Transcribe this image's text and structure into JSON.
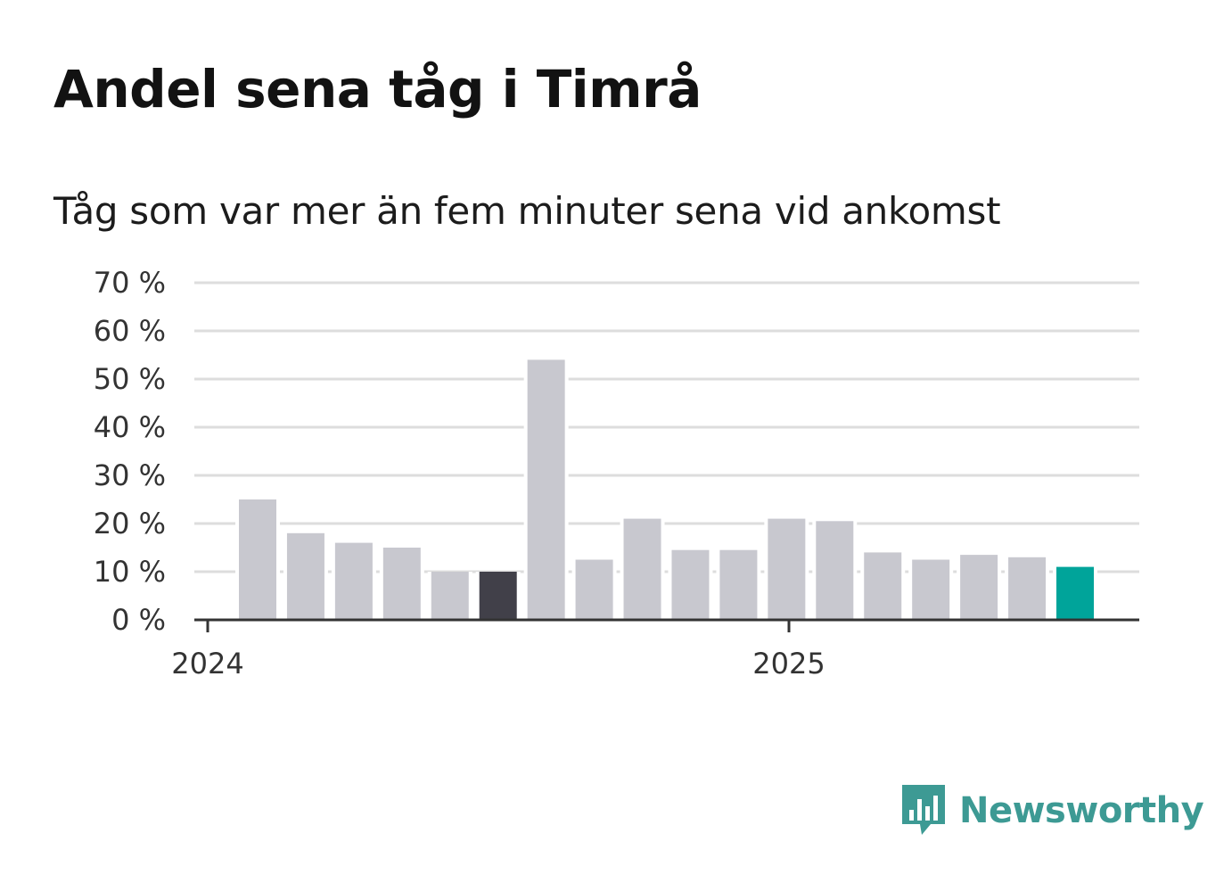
{
  "title": "Andel sena tåg i Timrå",
  "subtitle": "Tåg som var mer än fem minuter sena vid ankomst",
  "brand": {
    "name": "Newsworthy",
    "icon": "newsworthy-logo-icon",
    "color": "#3d9a94"
  },
  "chart_data": {
    "type": "bar",
    "y_unit": "%",
    "ylim": [
      0,
      70
    ],
    "y_ticks": [
      "0 %",
      "10 %",
      "20 %",
      "30 %",
      "40 %",
      "50 %",
      "60 %",
      "70 %"
    ],
    "x_ticks": [
      "2024",
      "2025"
    ],
    "grid": true,
    "colors": {
      "default": "#c8c8cf",
      "highlight": "#414049",
      "latest": "#00a49a",
      "grid": "#dddddd",
      "axis": "#333333"
    },
    "values": [
      25,
      18,
      16,
      15,
      10,
      10,
      54,
      12.5,
      21,
      14.5,
      14.5,
      21,
      20.5,
      14,
      12.5,
      13.5,
      13,
      11
    ]
  }
}
